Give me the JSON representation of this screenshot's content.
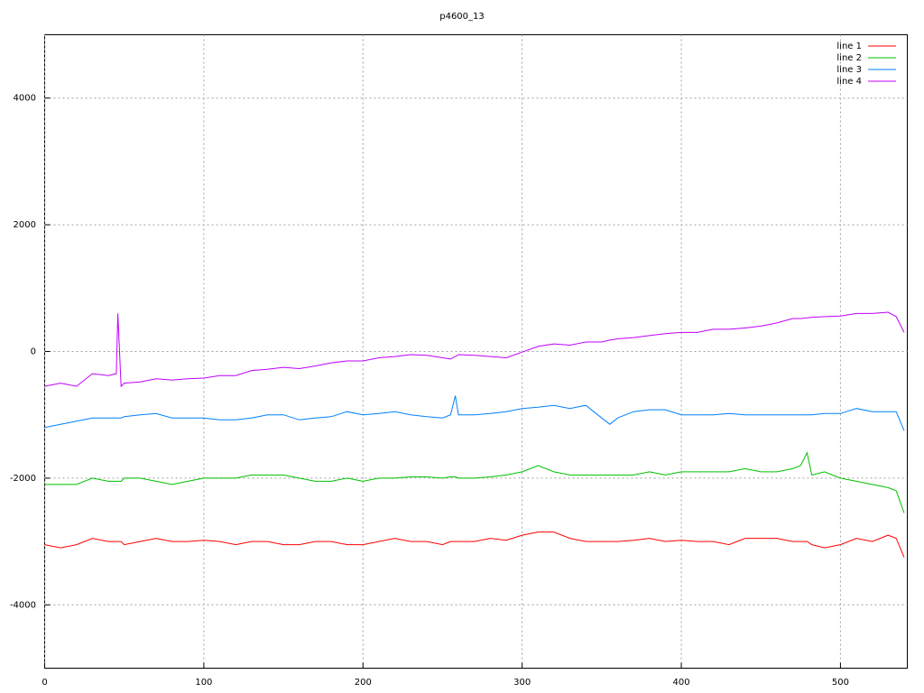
{
  "chart_data": {
    "type": "line",
    "title": "p4600_13",
    "x": [
      0,
      10,
      20,
      30,
      40,
      45,
      46,
      48,
      50,
      60,
      70,
      80,
      90,
      100,
      110,
      120,
      130,
      140,
      150,
      160,
      170,
      180,
      190,
      200,
      210,
      220,
      230,
      240,
      250,
      255,
      258,
      260,
      270,
      280,
      290,
      300,
      310,
      320,
      330,
      340,
      350,
      355,
      360,
      370,
      380,
      390,
      400,
      410,
      420,
      430,
      440,
      450,
      460,
      470,
      475,
      479,
      482,
      490,
      500,
      510,
      520,
      530,
      535,
      540
    ],
    "series": [
      {
        "name": "line 1",
        "color": "#ff0000",
        "values": [
          -3050,
          -3100,
          -3050,
          -2950,
          -3000,
          -3000,
          -3000,
          -3000,
          -3050,
          -3000,
          -2950,
          -3000,
          -3000,
          -2980,
          -3000,
          -3050,
          -3000,
          -3000,
          -3050,
          -3050,
          -3000,
          -3000,
          -3050,
          -3050,
          -3000,
          -2950,
          -3000,
          -3000,
          -3050,
          -3000,
          -3000,
          -3000,
          -3000,
          -2950,
          -2980,
          -2900,
          -2850,
          -2850,
          -2950,
          -3000,
          -3000,
          -3000,
          -3000,
          -2980,
          -2950,
          -3000,
          -2980,
          -3000,
          -3000,
          -3050,
          -2950,
          -2950,
          -2950,
          -3000,
          -3000,
          -3000,
          -3050,
          -3100,
          -3050,
          -2950,
          -3000,
          -2900,
          -2950,
          -3250
        ]
      },
      {
        "name": "line 2",
        "color": "#00c000",
        "values": [
          -2100,
          -2100,
          -2100,
          -2000,
          -2050,
          -2050,
          -2050,
          -2050,
          -2000,
          -2000,
          -2050,
          -2100,
          -2050,
          -2000,
          -2000,
          -2000,
          -1950,
          -1950,
          -1950,
          -2000,
          -2050,
          -2050,
          -2000,
          -2050,
          -2000,
          -2000,
          -1980,
          -1980,
          -2000,
          -1980,
          -1980,
          -2000,
          -2000,
          -1980,
          -1950,
          -1900,
          -1800,
          -1900,
          -1950,
          -1950,
          -1950,
          -1950,
          -1950,
          -1950,
          -1900,
          -1950,
          -1900,
          -1900,
          -1900,
          -1900,
          -1850,
          -1900,
          -1900,
          -1850,
          -1800,
          -1600,
          -1950,
          -1900,
          -2000,
          -2050,
          -2100,
          -2150,
          -2200,
          -2550
        ]
      },
      {
        "name": "line 3",
        "color": "#0080ff",
        "values": [
          -1200,
          -1150,
          -1100,
          -1050,
          -1050,
          -1050,
          -1050,
          -1050,
          -1030,
          -1000,
          -980,
          -1050,
          -1050,
          -1050,
          -1080,
          -1080,
          -1050,
          -1000,
          -1000,
          -1080,
          -1050,
          -1030,
          -950,
          -1000,
          -980,
          -950,
          -1000,
          -1030,
          -1050,
          -1000,
          -700,
          -1000,
          -1000,
          -980,
          -950,
          -900,
          -880,
          -850,
          -900,
          -850,
          -1050,
          -1150,
          -1050,
          -950,
          -920,
          -920,
          -1000,
          -1000,
          -1000,
          -980,
          -1000,
          -1000,
          -1000,
          -1000,
          -1000,
          -1000,
          -1000,
          -980,
          -980,
          -900,
          -950,
          -950,
          -950,
          -1250
        ]
      },
      {
        "name": "line 4",
        "color": "#c000ff",
        "values": [
          -550,
          -500,
          -550,
          -350,
          -380,
          -350,
          600,
          -550,
          -500,
          -480,
          -430,
          -450,
          -430,
          -420,
          -380,
          -380,
          -300,
          -280,
          -250,
          -270,
          -230,
          -180,
          -150,
          -150,
          -100,
          -80,
          -50,
          -60,
          -100,
          -120,
          -80,
          -50,
          -60,
          -80,
          -100,
          -10,
          80,
          120,
          100,
          150,
          150,
          180,
          200,
          220,
          250,
          280,
          300,
          300,
          350,
          350,
          370,
          400,
          450,
          520,
          520,
          530,
          540,
          550,
          560,
          600,
          600,
          620,
          550,
          300
        ]
      }
    ],
    "xlim": [
      0,
      542
    ],
    "ylim": [
      -5000,
      5000
    ],
    "xticks": [
      0,
      100,
      200,
      300,
      400,
      500
    ],
    "yticks": [
      -4000,
      -2000,
      0,
      2000,
      4000
    ],
    "grid": true,
    "legend": "top-right"
  }
}
